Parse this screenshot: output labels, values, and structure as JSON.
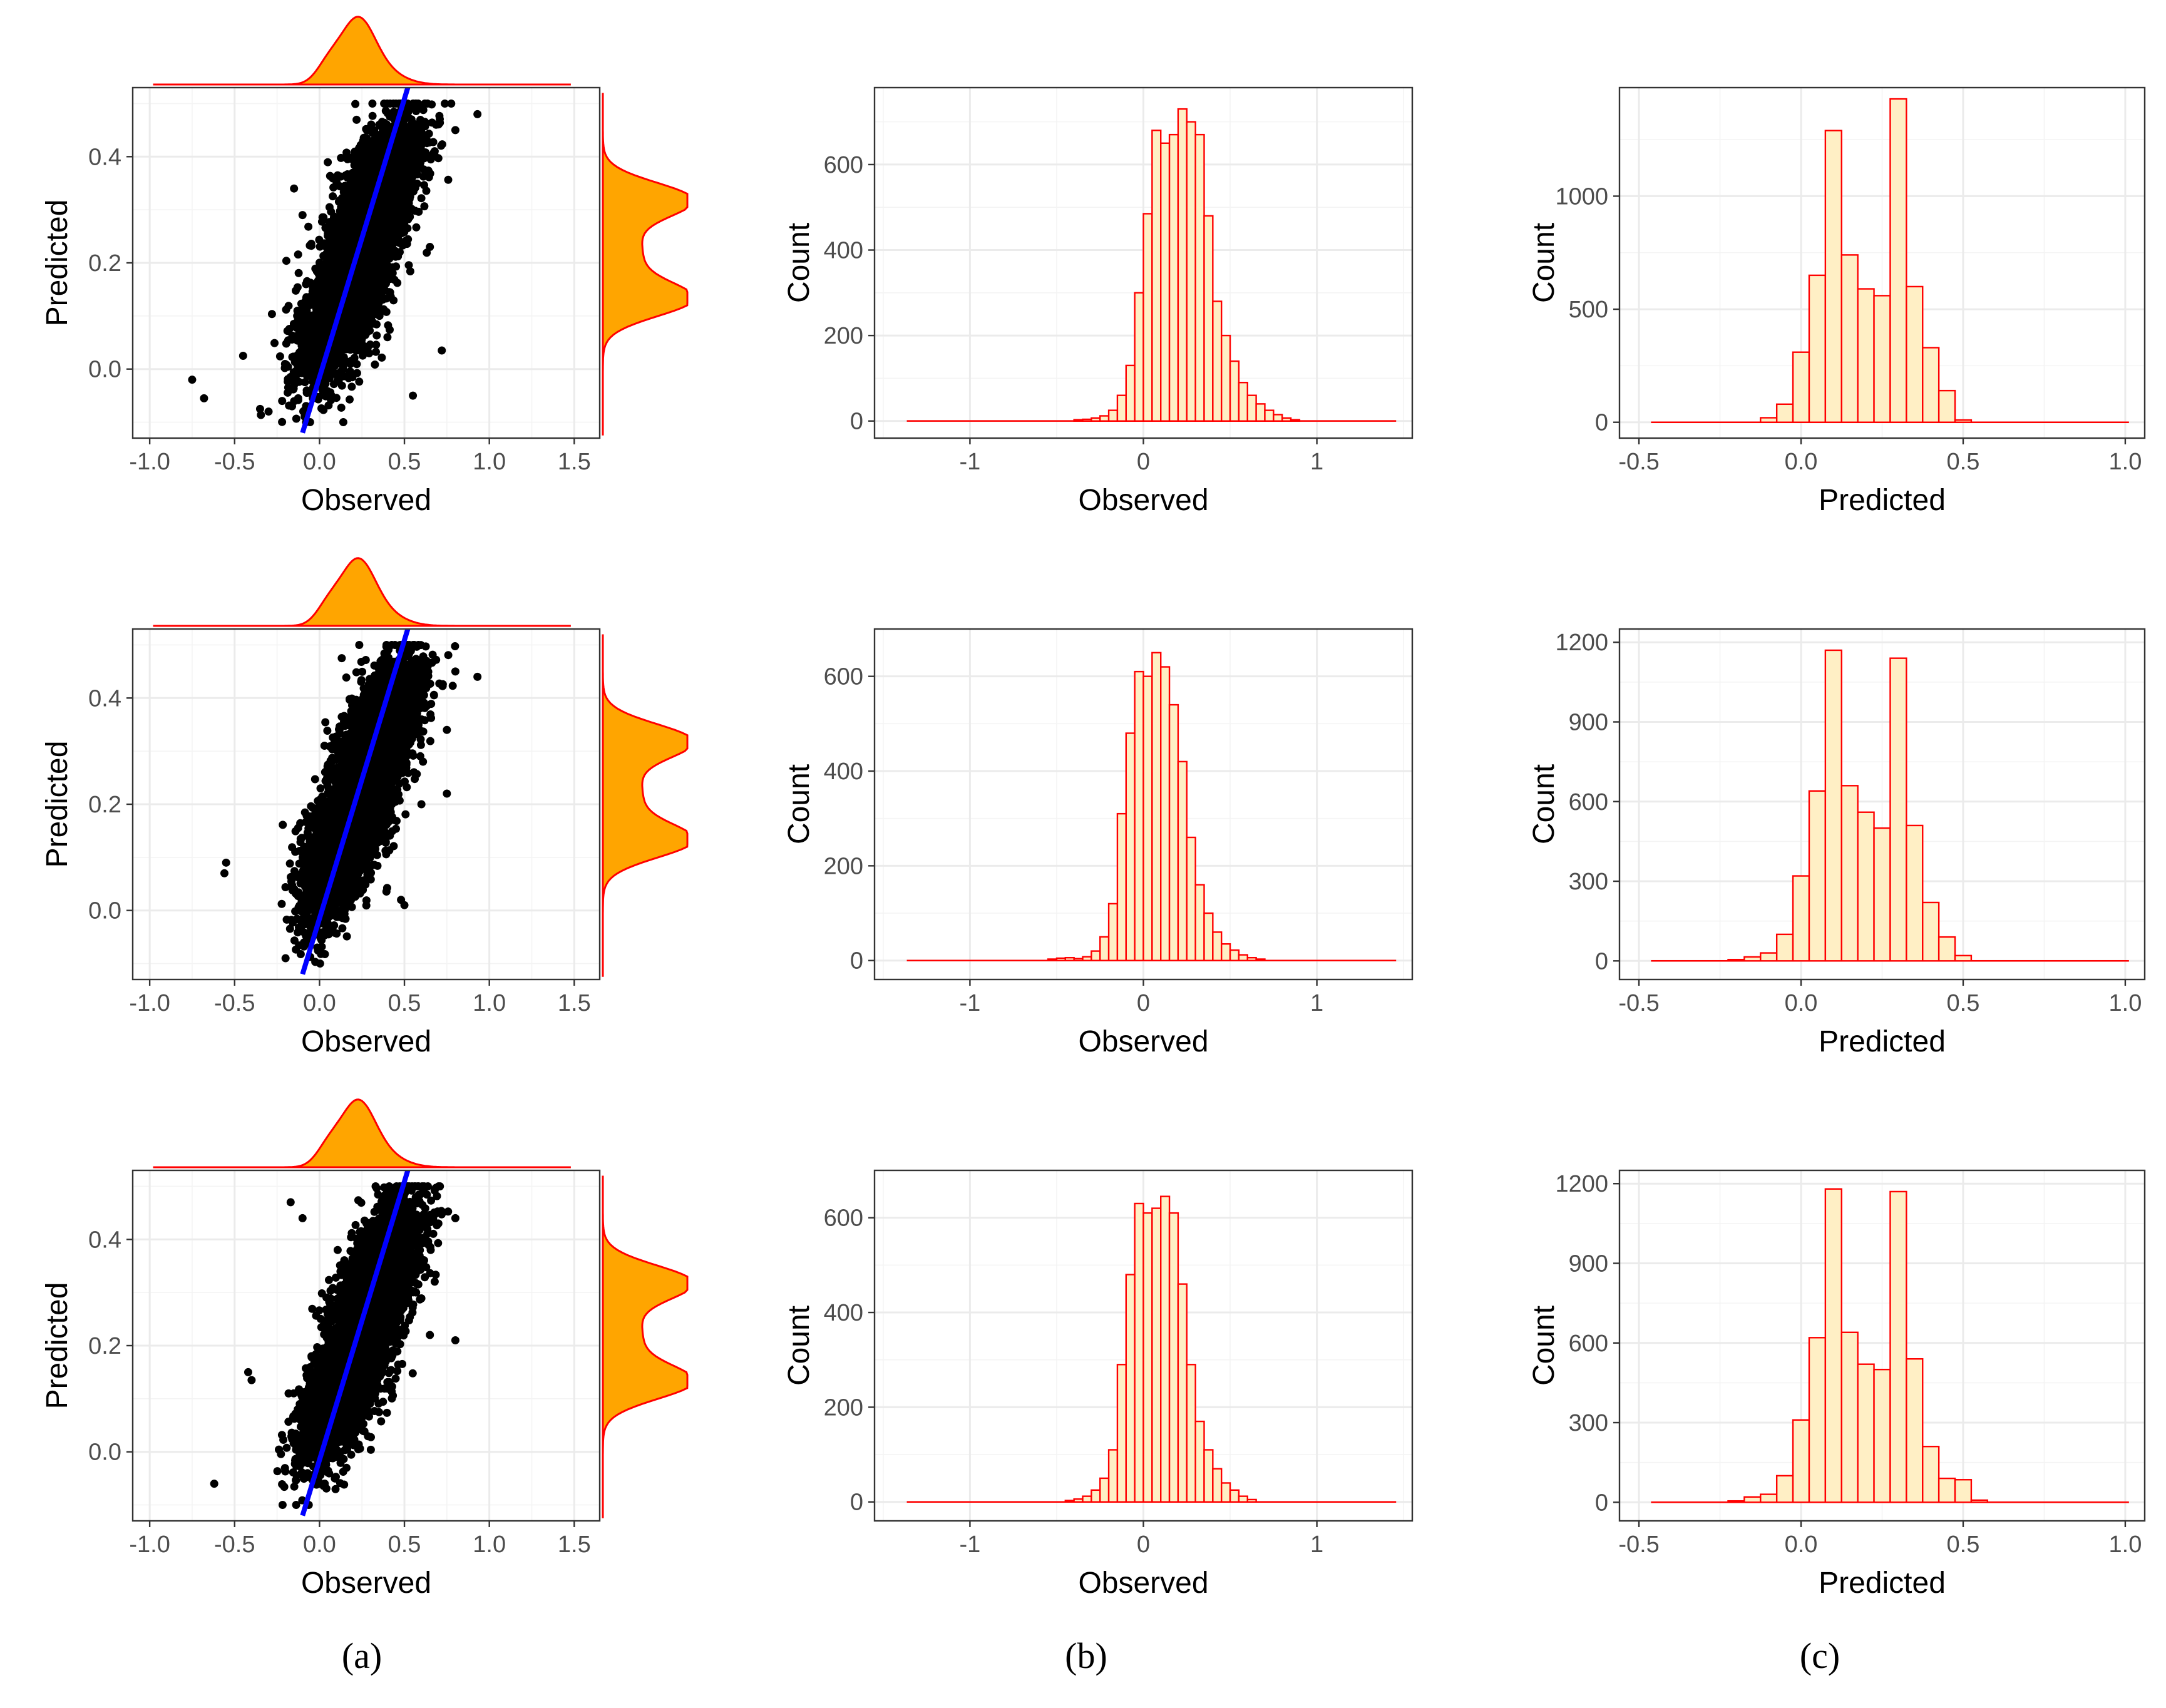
{
  "colors": {
    "points": "#000000",
    "fit_line": "#0000ff",
    "density_fill": "#ffa500",
    "density_line": "#ff0000",
    "hist_fill": "#ffefc5",
    "hist_line": "#ff0000",
    "grid": "#ebebeb"
  },
  "panel_labels": {
    "a": "(a)",
    "b": "(b)",
    "c": "(c)"
  },
  "chart_data": [
    {
      "id": "a1",
      "type": "scatter",
      "column": "a",
      "row": 1,
      "xlabel": "Observed",
      "ylabel": "Predicted",
      "xlim": [
        -1.1,
        1.65
      ],
      "ylim": [
        -0.13,
        0.53
      ],
      "xticks": [
        -1.0,
        -0.5,
        0.0,
        0.5,
        1.0,
        1.5
      ],
      "xtick_labels": [
        "-1.0",
        "-0.5",
        "0.0",
        "0.5",
        "1.0",
        "1.5"
      ],
      "yticks": [
        0.0,
        0.2,
        0.4
      ],
      "ytick_labels": [
        "0.0",
        "0.2",
        "0.4"
      ],
      "fit_line": {
        "x": [
          -0.1,
          0.52
        ],
        "y": [
          -0.12,
          0.53
        ]
      },
      "n_points": 5000,
      "outliers": [
        [
          -0.75,
          -0.02
        ],
        [
          -0.68,
          -0.055
        ],
        [
          -0.45,
          0.025
        ],
        [
          -0.35,
          -0.075
        ],
        [
          -0.3,
          -0.08
        ],
        [
          -0.22,
          -0.06
        ],
        [
          -0.15,
          0.34
        ],
        [
          -0.1,
          0.29
        ],
        [
          0.72,
          0.035
        ],
        [
          0.65,
          0.23
        ],
        [
          0.8,
          0.45
        ],
        [
          0.93,
          0.48
        ],
        [
          0.55,
          -0.05
        ],
        [
          0.4,
          0.06
        ]
      ],
      "marginal_x": "Observed density (top)",
      "marginal_y": "Predicted density (right)",
      "grid": true
    },
    {
      "id": "b1",
      "type": "bar",
      "column": "b",
      "row": 1,
      "xlabel": "Observed",
      "ylabel": "Count",
      "xlim": [
        -1.55,
        1.55
      ],
      "ylim": [
        -40,
        780
      ],
      "xticks": [
        -1,
        0,
        1
      ],
      "xtick_labels": [
        "-1",
        "0",
        "1"
      ],
      "yticks": [
        0,
        200,
        400,
        600
      ],
      "ytick_labels": [
        "0",
        "200",
        "400",
        "600"
      ],
      "bin_width": 0.05,
      "bin_start": -0.4,
      "values": [
        3,
        4,
        7,
        12,
        25,
        60,
        130,
        300,
        485,
        680,
        650,
        670,
        730,
        700,
        670,
        480,
        280,
        200,
        140,
        90,
        60,
        40,
        25,
        15,
        7,
        3
      ],
      "grid": true
    },
    {
      "id": "c1",
      "type": "bar",
      "column": "c",
      "row": 1,
      "xlabel": "Predicted",
      "ylabel": "Count",
      "xlim": [
        -0.56,
        1.06
      ],
      "ylim": [
        -70,
        1480
      ],
      "xticks": [
        -0.5,
        0.0,
        0.5,
        1.0
      ],
      "xtick_labels": [
        "-0.5",
        "0.0",
        "0.5",
        "1.0"
      ],
      "yticks": [
        0,
        500,
        1000
      ],
      "ytick_labels": [
        "0",
        "500",
        "1000"
      ],
      "bin_width": 0.05,
      "bin_start": -0.125,
      "values": [
        20,
        80,
        310,
        650,
        1290,
        740,
        590,
        560,
        1430,
        600,
        330,
        140,
        10
      ],
      "grid": true
    },
    {
      "id": "a2",
      "type": "scatter",
      "column": "a",
      "row": 2,
      "xlabel": "Observed",
      "ylabel": "Predicted",
      "xlim": [
        -1.1,
        1.65
      ],
      "ylim": [
        -0.13,
        0.53
      ],
      "xticks": [
        -1.0,
        -0.5,
        0.0,
        0.5,
        1.0,
        1.5
      ],
      "xtick_labels": [
        "-1.0",
        "-0.5",
        "0.0",
        "0.5",
        "1.0",
        "1.5"
      ],
      "yticks": [
        0.0,
        0.2,
        0.4
      ],
      "ytick_labels": [
        "0.0",
        "0.2",
        "0.4"
      ],
      "fit_line": {
        "x": [
          -0.1,
          0.52
        ],
        "y": [
          -0.12,
          0.53
        ]
      },
      "n_points": 5000,
      "outliers": [
        [
          -0.55,
          0.09
        ],
        [
          -0.56,
          0.07
        ],
        [
          -0.2,
          -0.09
        ],
        [
          0.48,
          0.02
        ],
        [
          0.5,
          0.01
        ],
        [
          0.75,
          0.34
        ],
        [
          0.8,
          0.45
        ],
        [
          0.93,
          0.44
        ],
        [
          0.75,
          0.22
        ],
        [
          0.6,
          0.2
        ]
      ],
      "marginal_x": "Observed density (top)",
      "marginal_y": "Predicted density (right)",
      "grid": true
    },
    {
      "id": "b2",
      "type": "bar",
      "column": "b",
      "row": 2,
      "xlabel": "Observed",
      "ylabel": "Count",
      "xlim": [
        -1.55,
        1.55
      ],
      "ylim": [
        -40,
        700
      ],
      "xticks": [
        -1,
        0,
        1
      ],
      "xtick_labels": [
        "-1",
        "0",
        "1"
      ],
      "yticks": [
        0,
        200,
        400,
        600
      ],
      "ytick_labels": [
        "0",
        "200",
        "400",
        "600"
      ],
      "bin_width": 0.05,
      "bin_start": -0.55,
      "values": [
        3,
        5,
        6,
        4,
        8,
        20,
        50,
        120,
        310,
        480,
        610,
        600,
        650,
        620,
        540,
        420,
        260,
        160,
        100,
        60,
        35,
        22,
        12,
        6,
        3
      ],
      "grid": true
    },
    {
      "id": "c2",
      "type": "bar",
      "column": "c",
      "row": 2,
      "xlabel": "Predicted",
      "ylabel": "Count",
      "xlim": [
        -0.56,
        1.06
      ],
      "ylim": [
        -70,
        1250
      ],
      "xticks": [
        -0.5,
        0.0,
        0.5,
        1.0
      ],
      "xtick_labels": [
        "-0.5",
        "0.0",
        "0.5",
        "1.0"
      ],
      "yticks": [
        0,
        300,
        600,
        900,
        1200
      ],
      "ytick_labels": [
        "0",
        "300",
        "600",
        "900",
        "1200"
      ],
      "bin_width": 0.05,
      "bin_start": -0.225,
      "values": [
        5,
        15,
        30,
        100,
        320,
        640,
        1170,
        660,
        560,
        500,
        1140,
        510,
        220,
        90,
        20
      ],
      "grid": true
    },
    {
      "id": "a3",
      "type": "scatter",
      "column": "a",
      "row": 3,
      "xlabel": "Observed",
      "ylabel": "Predicted",
      "xlim": [
        -1.1,
        1.65
      ],
      "ylim": [
        -0.13,
        0.53
      ],
      "xticks": [
        -1.0,
        -0.5,
        0.0,
        0.5,
        1.0,
        1.5
      ],
      "xtick_labels": [
        "-1.0",
        "-0.5",
        "0.0",
        "0.5",
        "1.0",
        "1.5"
      ],
      "yticks": [
        0.0,
        0.2,
        0.4
      ],
      "ytick_labels": [
        "0.0",
        "0.2",
        "0.4"
      ],
      "fit_line": {
        "x": [
          -0.1,
          0.52
        ],
        "y": [
          -0.12,
          0.53
        ]
      },
      "n_points": 5000,
      "outliers": [
        [
          -0.62,
          -0.06
        ],
        [
          -0.42,
          0.15
        ],
        [
          -0.4,
          0.135
        ],
        [
          -0.17,
          0.47
        ],
        [
          -0.1,
          0.44
        ],
        [
          0.65,
          0.22
        ],
        [
          0.8,
          0.21
        ],
        [
          0.7,
          0.43
        ],
        [
          0.8,
          0.44
        ]
      ],
      "marginal_x": "Observed density (top)",
      "marginal_y": "Predicted density (right)",
      "grid": true
    },
    {
      "id": "b3",
      "type": "bar",
      "column": "b",
      "row": 3,
      "xlabel": "Observed",
      "ylabel": "Count",
      "xlim": [
        -1.55,
        1.55
      ],
      "ylim": [
        -40,
        700
      ],
      "xticks": [
        -1,
        0,
        1
      ],
      "xtick_labels": [
        "-1",
        "0",
        "1"
      ],
      "yticks": [
        0,
        200,
        400,
        600
      ],
      "ytick_labels": [
        "0",
        "200",
        "400",
        "600"
      ],
      "bin_width": 0.05,
      "bin_start": -0.45,
      "values": [
        3,
        6,
        12,
        25,
        50,
        110,
        290,
        480,
        630,
        610,
        620,
        645,
        610,
        460,
        290,
        170,
        110,
        70,
        40,
        25,
        12,
        5
      ],
      "grid": true
    },
    {
      "id": "c3",
      "type": "bar",
      "column": "c",
      "row": 3,
      "xlabel": "Predicted",
      "ylabel": "Count",
      "xlim": [
        -0.56,
        1.06
      ],
      "ylim": [
        -70,
        1250
      ],
      "xticks": [
        -0.5,
        0.0,
        0.5,
        1.0
      ],
      "xtick_labels": [
        "-0.5",
        "0.0",
        "0.5",
        "1.0"
      ],
      "yticks": [
        0,
        300,
        600,
        900,
        1200
      ],
      "ytick_labels": [
        "0",
        "300",
        "600",
        "900",
        "1200"
      ],
      "bin_width": 0.05,
      "bin_start": -0.225,
      "values": [
        5,
        20,
        30,
        100,
        310,
        620,
        1180,
        640,
        520,
        500,
        1170,
        540,
        210,
        90,
        85,
        8
      ],
      "grid": true
    }
  ]
}
